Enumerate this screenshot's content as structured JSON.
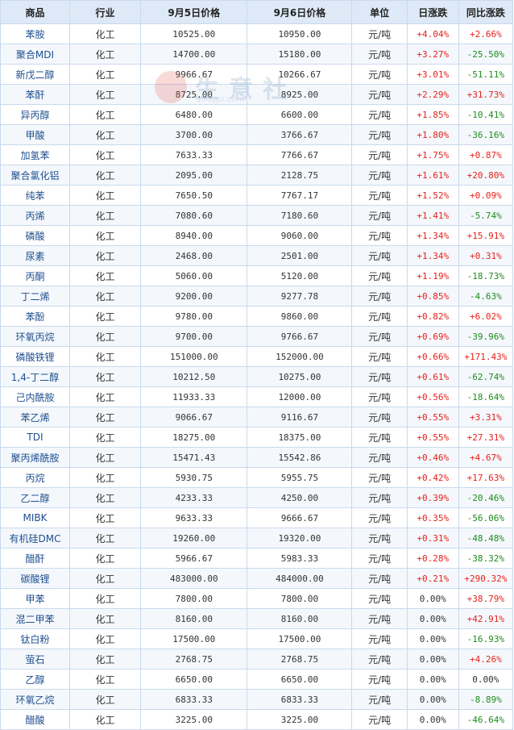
{
  "headers": [
    "商品",
    "行业",
    "9月5日价格",
    "9月6日价格",
    "单位",
    "日涨跌",
    "同比涨跌"
  ],
  "colors": {
    "up": "#e8201b",
    "down": "#1e8c1e",
    "flat": "#333333",
    "header_bg": "#dde9f6",
    "border": "#c9d9ec",
    "link": "#1f4f8f"
  },
  "watermark": {
    "text": "生意社",
    "url": "100ppi.com"
  },
  "rows": [
    {
      "name": "苯胺",
      "industry": "化工",
      "price_prev": "10525.00",
      "price_curr": "10950.00",
      "unit": "元/吨",
      "day_change": "+4.04%",
      "yoy_change": "+2.66%"
    },
    {
      "name": "聚合MDI",
      "industry": "化工",
      "price_prev": "14700.00",
      "price_curr": "15180.00",
      "unit": "元/吨",
      "day_change": "+3.27%",
      "yoy_change": "-25.50%"
    },
    {
      "name": "新戊二醇",
      "industry": "化工",
      "price_prev": "9966.67",
      "price_curr": "10266.67",
      "unit": "元/吨",
      "day_change": "+3.01%",
      "yoy_change": "-51.11%"
    },
    {
      "name": "苯酐",
      "industry": "化工",
      "price_prev": "8725.00",
      "price_curr": "8925.00",
      "unit": "元/吨",
      "day_change": "+2.29%",
      "yoy_change": "+31.73%"
    },
    {
      "name": "异丙醇",
      "industry": "化工",
      "price_prev": "6480.00",
      "price_curr": "6600.00",
      "unit": "元/吨",
      "day_change": "+1.85%",
      "yoy_change": "-10.41%"
    },
    {
      "name": "甲酸",
      "industry": "化工",
      "price_prev": "3700.00",
      "price_curr": "3766.67",
      "unit": "元/吨",
      "day_change": "+1.80%",
      "yoy_change": "-36.16%"
    },
    {
      "name": "加氢苯",
      "industry": "化工",
      "price_prev": "7633.33",
      "price_curr": "7766.67",
      "unit": "元/吨",
      "day_change": "+1.75%",
      "yoy_change": "+0.87%"
    },
    {
      "name": "聚合氯化铝",
      "industry": "化工",
      "price_prev": "2095.00",
      "price_curr": "2128.75",
      "unit": "元/吨",
      "day_change": "+1.61%",
      "yoy_change": "+20.80%"
    },
    {
      "name": "纯苯",
      "industry": "化工",
      "price_prev": "7650.50",
      "price_curr": "7767.17",
      "unit": "元/吨",
      "day_change": "+1.52%",
      "yoy_change": "+0.09%"
    },
    {
      "name": "丙烯",
      "industry": "化工",
      "price_prev": "7080.60",
      "price_curr": "7180.60",
      "unit": "元/吨",
      "day_change": "+1.41%",
      "yoy_change": "-5.74%"
    },
    {
      "name": "磷酸",
      "industry": "化工",
      "price_prev": "8940.00",
      "price_curr": "9060.00",
      "unit": "元/吨",
      "day_change": "+1.34%",
      "yoy_change": "+15.91%"
    },
    {
      "name": "尿素",
      "industry": "化工",
      "price_prev": "2468.00",
      "price_curr": "2501.00",
      "unit": "元/吨",
      "day_change": "+1.34%",
      "yoy_change": "+0.31%"
    },
    {
      "name": "丙酮",
      "industry": "化工",
      "price_prev": "5060.00",
      "price_curr": "5120.00",
      "unit": "元/吨",
      "day_change": "+1.19%",
      "yoy_change": "-18.73%"
    },
    {
      "name": "丁二烯",
      "industry": "化工",
      "price_prev": "9200.00",
      "price_curr": "9277.78",
      "unit": "元/吨",
      "day_change": "+0.85%",
      "yoy_change": "-4.63%"
    },
    {
      "name": "苯酚",
      "industry": "化工",
      "price_prev": "9780.00",
      "price_curr": "9860.00",
      "unit": "元/吨",
      "day_change": "+0.82%",
      "yoy_change": "+6.02%"
    },
    {
      "name": "环氧丙烷",
      "industry": "化工",
      "price_prev": "9700.00",
      "price_curr": "9766.67",
      "unit": "元/吨",
      "day_change": "+0.69%",
      "yoy_change": "-39.96%"
    },
    {
      "name": "磷酸铁锂",
      "industry": "化工",
      "price_prev": "151000.00",
      "price_curr": "152000.00",
      "unit": "元/吨",
      "day_change": "+0.66%",
      "yoy_change": "+171.43%"
    },
    {
      "name": "1,4-丁二醇",
      "industry": "化工",
      "price_prev": "10212.50",
      "price_curr": "10275.00",
      "unit": "元/吨",
      "day_change": "+0.61%",
      "yoy_change": "-62.74%"
    },
    {
      "name": "己内酰胺",
      "industry": "化工",
      "price_prev": "11933.33",
      "price_curr": "12000.00",
      "unit": "元/吨",
      "day_change": "+0.56%",
      "yoy_change": "-18.64%"
    },
    {
      "name": "苯乙烯",
      "industry": "化工",
      "price_prev": "9066.67",
      "price_curr": "9116.67",
      "unit": "元/吨",
      "day_change": "+0.55%",
      "yoy_change": "+3.31%"
    },
    {
      "name": "TDI",
      "industry": "化工",
      "price_prev": "18275.00",
      "price_curr": "18375.00",
      "unit": "元/吨",
      "day_change": "+0.55%",
      "yoy_change": "+27.31%"
    },
    {
      "name": "聚丙烯酰胺",
      "industry": "化工",
      "price_prev": "15471.43",
      "price_curr": "15542.86",
      "unit": "元/吨",
      "day_change": "+0.46%",
      "yoy_change": "+4.67%"
    },
    {
      "name": "丙烷",
      "industry": "化工",
      "price_prev": "5930.75",
      "price_curr": "5955.75",
      "unit": "元/吨",
      "day_change": "+0.42%",
      "yoy_change": "+17.63%"
    },
    {
      "name": "乙二醇",
      "industry": "化工",
      "price_prev": "4233.33",
      "price_curr": "4250.00",
      "unit": "元/吨",
      "day_change": "+0.39%",
      "yoy_change": "-20.46%"
    },
    {
      "name": "MIBK",
      "industry": "化工",
      "price_prev": "9633.33",
      "price_curr": "9666.67",
      "unit": "元/吨",
      "day_change": "+0.35%",
      "yoy_change": "-56.06%"
    },
    {
      "name": "有机硅DMC",
      "industry": "化工",
      "price_prev": "19260.00",
      "price_curr": "19320.00",
      "unit": "元/吨",
      "day_change": "+0.31%",
      "yoy_change": "-48.48%"
    },
    {
      "name": "醋酐",
      "industry": "化工",
      "price_prev": "5966.67",
      "price_curr": "5983.33",
      "unit": "元/吨",
      "day_change": "+0.28%",
      "yoy_change": "-38.32%"
    },
    {
      "name": "碳酸锂",
      "industry": "化工",
      "price_prev": "483000.00",
      "price_curr": "484000.00",
      "unit": "元/吨",
      "day_change": "+0.21%",
      "yoy_change": "+290.32%"
    },
    {
      "name": "甲苯",
      "industry": "化工",
      "price_prev": "7800.00",
      "price_curr": "7800.00",
      "unit": "元/吨",
      "day_change": "0.00%",
      "yoy_change": "+38.79%"
    },
    {
      "name": "混二甲苯",
      "industry": "化工",
      "price_prev": "8160.00",
      "price_curr": "8160.00",
      "unit": "元/吨",
      "day_change": "0.00%",
      "yoy_change": "+42.91%"
    },
    {
      "name": "钛白粉",
      "industry": "化工",
      "price_prev": "17500.00",
      "price_curr": "17500.00",
      "unit": "元/吨",
      "day_change": "0.00%",
      "yoy_change": "-16.93%"
    },
    {
      "name": "萤石",
      "industry": "化工",
      "price_prev": "2768.75",
      "price_curr": "2768.75",
      "unit": "元/吨",
      "day_change": "0.00%",
      "yoy_change": "+4.26%"
    },
    {
      "name": "乙醇",
      "industry": "化工",
      "price_prev": "6650.00",
      "price_curr": "6650.00",
      "unit": "元/吨",
      "day_change": "0.00%",
      "yoy_change": "0.00%"
    },
    {
      "name": "环氧乙烷",
      "industry": "化工",
      "price_prev": "6833.33",
      "price_curr": "6833.33",
      "unit": "元/吨",
      "day_change": "0.00%",
      "yoy_change": "-8.89%"
    },
    {
      "name": "醋酸",
      "industry": "化工",
      "price_prev": "3225.00",
      "price_curr": "3225.00",
      "unit": "元/吨",
      "day_change": "0.00%",
      "yoy_change": "-46.64%"
    }
  ]
}
